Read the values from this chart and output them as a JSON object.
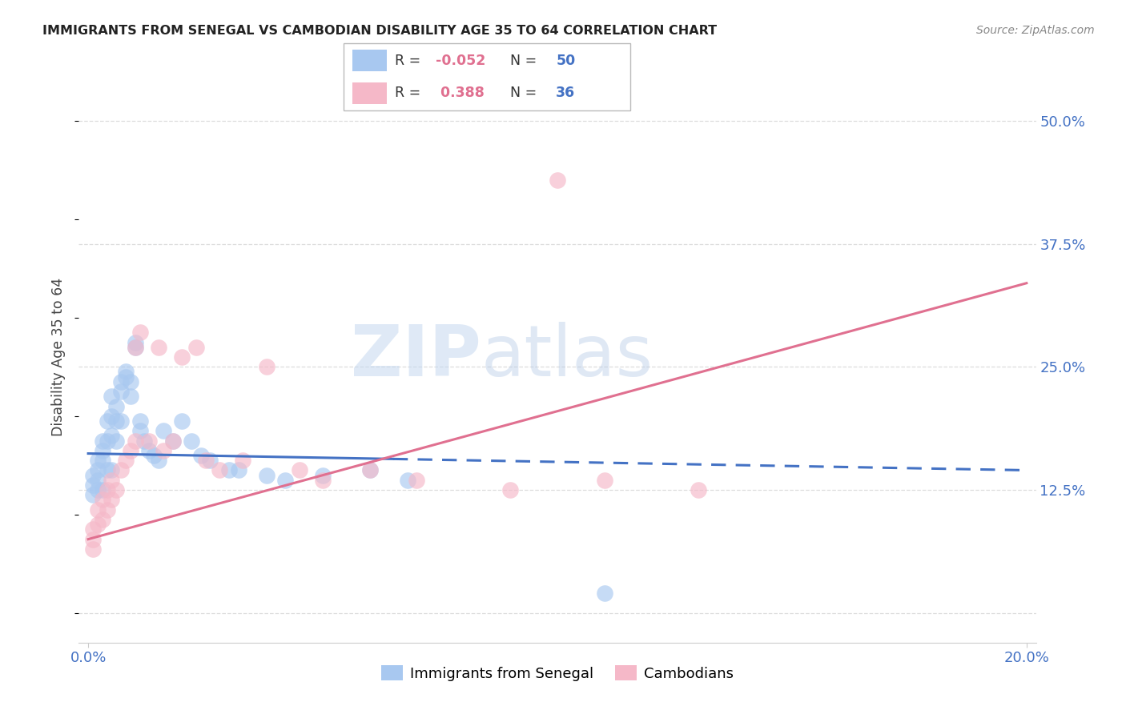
{
  "title": "IMMIGRANTS FROM SENEGAL VS CAMBODIAN DISABILITY AGE 35 TO 64 CORRELATION CHART",
  "source": "Source: ZipAtlas.com",
  "tick_color": "#4472c4",
  "ylabel": "Disability Age 35 to 64",
  "xlim": [
    -0.002,
    0.202
  ],
  "ylim": [
    -0.03,
    0.55
  ],
  "ytick_values": [
    0.0,
    0.125,
    0.25,
    0.375,
    0.5
  ],
  "ytick_labels": [
    "",
    "12.5%",
    "25.0%",
    "37.5%",
    "50.0%"
  ],
  "xtick_values": [
    0.0,
    0.2
  ],
  "xtick_labels": [
    "0.0%",
    "20.0%"
  ],
  "watermark_line1": "ZIP",
  "watermark_line2": "atlas",
  "blue_color": "#a8c8f0",
  "pink_color": "#f5b8c8",
  "blue_line_color": "#4472c4",
  "pink_line_color": "#e07090",
  "legend_label_blue": "Immigrants from Senegal",
  "legend_label_pink": "Cambodians",
  "blue_R": "-0.052",
  "blue_N": "50",
  "pink_R": "0.388",
  "pink_N": "36",
  "blue_scatter_x": [
    0.001,
    0.001,
    0.001,
    0.002,
    0.002,
    0.002,
    0.002,
    0.003,
    0.003,
    0.003,
    0.003,
    0.004,
    0.004,
    0.004,
    0.005,
    0.005,
    0.005,
    0.005,
    0.006,
    0.006,
    0.006,
    0.007,
    0.007,
    0.007,
    0.008,
    0.008,
    0.009,
    0.009,
    0.01,
    0.01,
    0.011,
    0.011,
    0.012,
    0.013,
    0.014,
    0.015,
    0.016,
    0.018,
    0.02,
    0.022,
    0.024,
    0.026,
    0.03,
    0.032,
    0.038,
    0.042,
    0.05,
    0.06,
    0.068,
    0.11
  ],
  "blue_scatter_y": [
    0.14,
    0.13,
    0.12,
    0.155,
    0.145,
    0.135,
    0.125,
    0.175,
    0.165,
    0.155,
    0.125,
    0.195,
    0.175,
    0.145,
    0.22,
    0.2,
    0.18,
    0.145,
    0.21,
    0.195,
    0.175,
    0.235,
    0.225,
    0.195,
    0.245,
    0.24,
    0.235,
    0.22,
    0.275,
    0.27,
    0.195,
    0.185,
    0.175,
    0.165,
    0.16,
    0.155,
    0.185,
    0.175,
    0.195,
    0.175,
    0.16,
    0.155,
    0.145,
    0.145,
    0.14,
    0.135,
    0.14,
    0.145,
    0.135,
    0.02
  ],
  "pink_scatter_x": [
    0.001,
    0.001,
    0.001,
    0.002,
    0.002,
    0.003,
    0.003,
    0.004,
    0.004,
    0.005,
    0.005,
    0.006,
    0.007,
    0.008,
    0.009,
    0.01,
    0.01,
    0.011,
    0.013,
    0.015,
    0.016,
    0.018,
    0.02,
    0.023,
    0.025,
    0.028,
    0.033,
    0.038,
    0.045,
    0.05,
    0.06,
    0.07,
    0.09,
    0.1,
    0.11,
    0.13
  ],
  "pink_scatter_y": [
    0.085,
    0.075,
    0.065,
    0.105,
    0.09,
    0.115,
    0.095,
    0.125,
    0.105,
    0.135,
    0.115,
    0.125,
    0.145,
    0.155,
    0.165,
    0.175,
    0.27,
    0.285,
    0.175,
    0.27,
    0.165,
    0.175,
    0.26,
    0.27,
    0.155,
    0.145,
    0.155,
    0.25,
    0.145,
    0.135,
    0.145,
    0.135,
    0.125,
    0.44,
    0.135,
    0.125
  ],
  "grid_color": "#dddddd",
  "grid_style": "--",
  "spine_color": "#cccccc"
}
